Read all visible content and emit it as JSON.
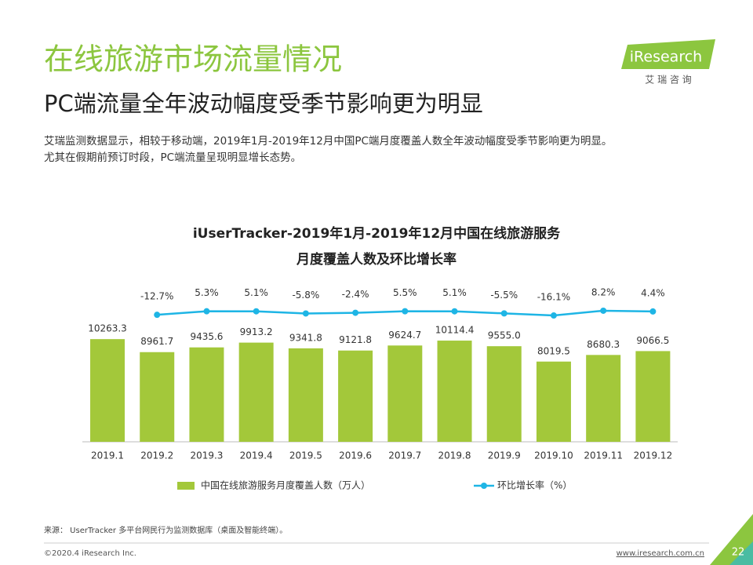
{
  "header": {
    "title": "在线旅游市场流量情况",
    "subtitle": "PC端流量全年波动幅度受季节影响更为明显",
    "description": [
      "艾瑞监测数据显示，相较于移动端，2019年1月-2019年12月中国PC端月度覆盖人数全年波动幅度受季节影响更为明显。",
      "尤其在假期前预订时段，PC端流量呈现明显增长态势。"
    ]
  },
  "logo": {
    "brand": "iResearch",
    "tagline": "艾 瑞 咨 询"
  },
  "chart_data": {
    "type": "bar_line",
    "title": [
      "iUserTracker-2019年1月-2019年12月中国在线旅游服务",
      "月度覆盖人数及环比增长率"
    ],
    "categories": [
      "2019.1",
      "2019.2",
      "2019.3",
      "2019.4",
      "2019.5",
      "2019.6",
      "2019.7",
      "2019.8",
      "2019.9",
      "2019.10",
      "2019.11",
      "2019.12"
    ],
    "series": [
      {
        "name": "中国在线旅游服务月度覆盖人数（万人）",
        "color": "#a3c83a",
        "type": "bar",
        "values": [
          10263.3,
          8961.7,
          9435.6,
          9913.2,
          9341.8,
          9121.8,
          9624.7,
          10114.4,
          9555,
          8019.5,
          8680.3,
          9066.5
        ],
        "value_labels": [
          "10263.3",
          "8961.7",
          "9435.6",
          "9913.2",
          "9341.8",
          "9121.8",
          "9624.7",
          "10114.4",
          "9555.0",
          "8019.5",
          "8680.3",
          "9066.5"
        ]
      },
      {
        "name": "环比增长率（%）",
        "color": "#1eb5e5",
        "type": "line",
        "axis": "y2",
        "values": [
          null,
          -12.7,
          5.3,
          5.1,
          -5.8,
          -2.4,
          5.5,
          5.1,
          -5.5,
          -16.1,
          8.2,
          4.4
        ],
        "value_labels": [
          null,
          "-12.7%",
          "5.3%",
          "5.1%",
          "-5.8%",
          "-2.4%",
          "5.5%",
          "5.1%",
          "-5.5%",
          "-16.1%",
          "8.2%",
          "4.4%"
        ]
      }
    ],
    "ylim": [
      0,
      20000
    ],
    "y2lim": [
      -660,
      360
    ]
  },
  "footer": {
    "source": "来源： UserTracker 多平台网民行为监测数据库（桌面及智能终端）。",
    "copyright": "©2020.4 iResearch Inc.",
    "url": "www.iresearch.com.cn",
    "page": "22"
  }
}
